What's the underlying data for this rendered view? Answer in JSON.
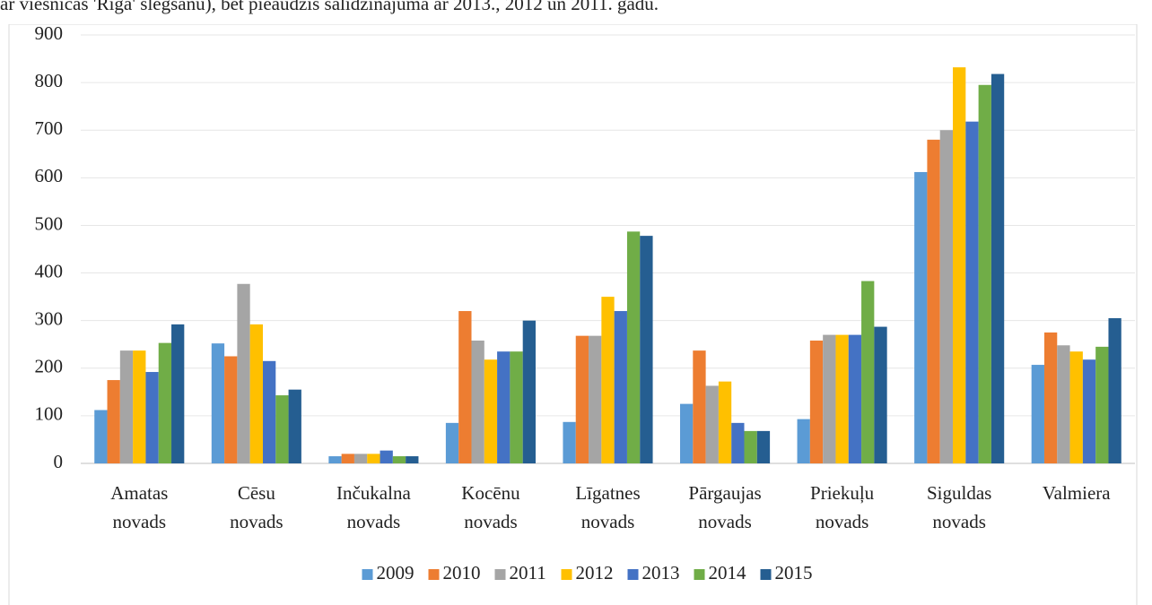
{
  "chart_data": {
    "type": "bar",
    "annotation": "ar viesnīcas 'Rīga' slēgšanu), bet pieaudzis salīdzinājumā ar 2013., 2012 un 2011. gadu.",
    "categories": [
      "Amatas novads",
      "Cēsu novads",
      "Inčukalna novads",
      "Kocēnu novads",
      "Līgatnes novads",
      "Pārgaujas novads",
      "Priekuļu novads",
      "Siguldas novads",
      "Valmiera"
    ],
    "series": [
      {
        "name": "2009",
        "color": "#5b9bd5",
        "values": [
          112,
          252,
          15,
          85,
          87,
          125,
          93,
          612,
          207
        ]
      },
      {
        "name": "2010",
        "color": "#ed7d31",
        "values": [
          175,
          225,
          20,
          320,
          268,
          237,
          258,
          680,
          275
        ]
      },
      {
        "name": "2011",
        "color": "#a5a5a5",
        "values": [
          237,
          377,
          20,
          258,
          268,
          163,
          270,
          700,
          248
        ]
      },
      {
        "name": "2012",
        "color": "#ffc000",
        "values": [
          237,
          292,
          20,
          218,
          350,
          172,
          270,
          832,
          235
        ]
      },
      {
        "name": "2013",
        "color": "#4472c4",
        "values": [
          192,
          215,
          27,
          235,
          320,
          85,
          270,
          718,
          218
        ]
      },
      {
        "name": "2014",
        "color": "#70ad47",
        "values": [
          253,
          143,
          15,
          235,
          487,
          68,
          383,
          795,
          245
        ]
      },
      {
        "name": "2015",
        "color": "#255e91",
        "values": [
          292,
          155,
          15,
          300,
          478,
          68,
          287,
          818,
          305
        ]
      }
    ],
    "ylim": [
      0,
      900
    ],
    "yticks": [
      0,
      100,
      200,
      300,
      400,
      500,
      600,
      700,
      800,
      900
    ],
    "grid": true,
    "legend": "bottom"
  }
}
